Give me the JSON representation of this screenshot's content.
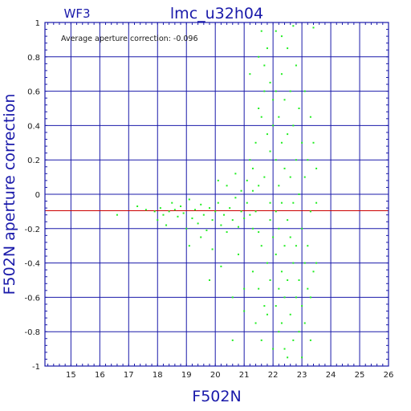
{
  "chart_data": {
    "type": "scatter",
    "title": "lmc_u32h04",
    "subtitle": "WF3",
    "xlabel": "F502N",
    "ylabel": "F502N aperture correction",
    "annotation": "Average aperture correction: -0.096",
    "xlim": [
      14.1,
      26
    ],
    "ylim": [
      -1,
      1
    ],
    "x_ticks": [
      "15",
      "16",
      "17",
      "18",
      "19",
      "20",
      "21",
      "22",
      "23",
      "24",
      "25",
      "26"
    ],
    "y_ticks": [
      "1",
      "0.8",
      "0.6",
      "0.4",
      "0.2",
      "0",
      "-0.2",
      "-0.4",
      "-0.6",
      "-0.8",
      "-1"
    ],
    "grid": true,
    "reference_line": {
      "y": -0.096,
      "color": "#cc0000"
    },
    "colors": {
      "frame": "#1a1aaa",
      "points": "#22ee22",
      "reference": "#cc0000"
    },
    "points": [
      [
        16.6,
        -0.12
      ],
      [
        17.3,
        -0.07
      ],
      [
        17.6,
        -0.09
      ],
      [
        17.9,
        -0.1
      ],
      [
        18.0,
        -0.15
      ],
      [
        18.1,
        -0.08
      ],
      [
        18.2,
        -0.12
      ],
      [
        18.3,
        -0.18
      ],
      [
        18.4,
        -0.1
      ],
      [
        18.5,
        -0.05
      ],
      [
        18.6,
        -0.09
      ],
      [
        18.7,
        -0.13
      ],
      [
        18.8,
        -0.07
      ],
      [
        18.9,
        -0.11
      ],
      [
        19.0,
        -0.2
      ],
      [
        19.1,
        -0.03
      ],
      [
        19.2,
        -0.14
      ],
      [
        19.3,
        -0.09
      ],
      [
        19.4,
        -0.17
      ],
      [
        19.5,
        -0.06
      ],
      [
        19.6,
        -0.12
      ],
      [
        19.7,
        -0.21
      ],
      [
        19.8,
        -0.08
      ],
      [
        19.9,
        -0.15
      ],
      [
        20.0,
        -0.1
      ],
      [
        19.1,
        -0.3
      ],
      [
        19.5,
        -0.25
      ],
      [
        19.9,
        -0.32
      ],
      [
        20.1,
        -0.05
      ],
      [
        20.2,
        -0.18
      ],
      [
        20.3,
        -0.12
      ],
      [
        20.4,
        -0.22
      ],
      [
        20.5,
        -0.08
      ],
      [
        20.6,
        -0.15
      ],
      [
        20.7,
        -0.02
      ],
      [
        20.8,
        -0.19
      ],
      [
        20.9,
        -0.1
      ],
      [
        21.0,
        -0.14
      ],
      [
        20.1,
        0.08
      ],
      [
        20.4,
        0.05
      ],
      [
        20.7,
        0.12
      ],
      [
        20.9,
        0.02
      ],
      [
        19.8,
        -0.5
      ],
      [
        20.2,
        -0.42
      ],
      [
        20.6,
        -0.6
      ],
      [
        20.8,
        -0.35
      ],
      [
        21.0,
        -0.68
      ],
      [
        20.6,
        -0.85
      ],
      [
        21.0,
        -0.55
      ],
      [
        21.1,
        -0.05
      ],
      [
        21.1,
        0.08
      ],
      [
        21.2,
        -0.12
      ],
      [
        21.2,
        0.2
      ],
      [
        21.3,
        0.15
      ],
      [
        21.3,
        -0.2
      ],
      [
        21.4,
        0.3
      ],
      [
        21.4,
        -0.1
      ],
      [
        21.5,
        0.5
      ],
      [
        21.5,
        0.05
      ],
      [
        21.6,
        0.45
      ],
      [
        21.6,
        -0.3
      ],
      [
        21.7,
        0.6
      ],
      [
        21.7,
        0.1
      ],
      [
        21.8,
        0.35
      ],
      [
        21.8,
        -0.4
      ],
      [
        21.9,
        0.25
      ],
      [
        21.9,
        -0.15
      ],
      [
        22.0,
        0.4
      ],
      [
        22.0,
        -0.25
      ],
      [
        21.3,
        -0.45
      ],
      [
        21.5,
        -0.55
      ],
      [
        21.7,
        -0.65
      ],
      [
        21.9,
        -0.5
      ],
      [
        21.4,
        -0.75
      ],
      [
        21.6,
        -0.85
      ],
      [
        21.8,
        -0.7
      ],
      [
        22.0,
        -0.9
      ],
      [
        21.2,
        0.7
      ],
      [
        21.5,
        0.8
      ],
      [
        21.7,
        0.75
      ],
      [
        21.9,
        0.65
      ],
      [
        21.6,
        0.95
      ],
      [
        21.8,
        0.85
      ],
      [
        22.1,
        0.95
      ],
      [
        22.1,
        0.6
      ],
      [
        22.1,
        0.2
      ],
      [
        22.1,
        -0.1
      ],
      [
        22.1,
        -0.35
      ],
      [
        22.1,
        -0.65
      ],
      [
        22.2,
        0.45
      ],
      [
        22.2,
        0.05
      ],
      [
        22.2,
        -0.2
      ],
      [
        22.2,
        -0.55
      ],
      [
        22.2,
        -0.8
      ],
      [
        22.3,
        0.7
      ],
      [
        22.3,
        0.3
      ],
      [
        22.3,
        -0.05
      ],
      [
        22.3,
        -0.45
      ],
      [
        22.3,
        -0.75
      ],
      [
        22.4,
        0.55
      ],
      [
        22.4,
        0.15
      ],
      [
        22.4,
        -0.3
      ],
      [
        22.4,
        -0.6
      ],
      [
        22.4,
        -0.9
      ],
      [
        22.5,
        0.85
      ],
      [
        22.5,
        0.35
      ],
      [
        22.5,
        -0.15
      ],
      [
        22.5,
        -0.5
      ],
      [
        22.5,
        -0.95
      ],
      [
        22.6,
        0.6
      ],
      [
        22.6,
        0.1
      ],
      [
        22.6,
        -0.25
      ],
      [
        22.6,
        -0.7
      ],
      [
        22.7,
        0.4
      ],
      [
        22.7,
        -0.05
      ],
      [
        22.7,
        -0.4
      ],
      [
        22.7,
        -0.85
      ],
      [
        22.8,
        0.75
      ],
      [
        22.8,
        0.2
      ],
      [
        22.8,
        -0.3
      ],
      [
        22.8,
        -0.6
      ],
      [
        22.9,
        0.5
      ],
      [
        22.9,
        0.0
      ],
      [
        22.9,
        -0.5
      ],
      [
        22.9,
        -0.8
      ],
      [
        23.0,
        0.3
      ],
      [
        23.0,
        -0.2
      ],
      [
        23.0,
        -0.65
      ],
      [
        23.0,
        -0.95
      ],
      [
        23.1,
        0.6
      ],
      [
        23.1,
        0.1
      ],
      [
        23.1,
        -0.4
      ],
      [
        23.1,
        -0.75
      ],
      [
        23.2,
        0.2
      ],
      [
        23.2,
        -0.3
      ],
      [
        23.2,
        -0.55
      ],
      [
        23.3,
        0.45
      ],
      [
        23.3,
        -0.1
      ],
      [
        23.3,
        -0.6
      ],
      [
        23.3,
        -0.85
      ],
      [
        23.4,
        0.3
      ],
      [
        23.4,
        -0.45
      ],
      [
        23.4,
        0.97
      ],
      [
        23.5,
        0.15
      ],
      [
        23.5,
        -0.05
      ],
      [
        23.5,
        -0.4
      ],
      [
        22.7,
        0.98
      ],
      [
        22.3,
        0.92
      ],
      [
        22.0,
        0.55
      ],
      [
        21.9,
        -0.05
      ],
      [
        21.5,
        -0.22
      ],
      [
        21.3,
        0.02
      ]
    ]
  }
}
